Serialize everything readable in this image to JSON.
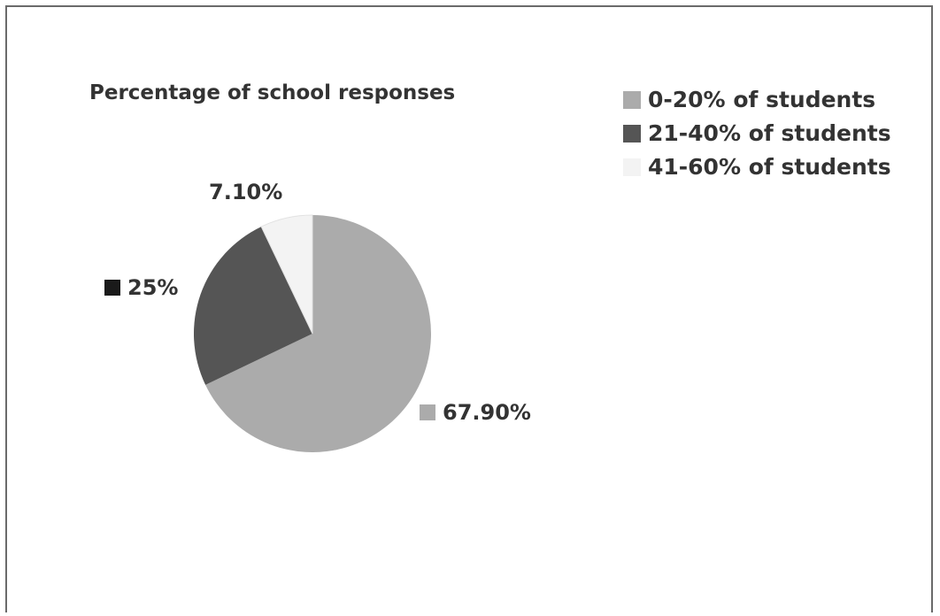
{
  "chart_data": {
    "type": "pie",
    "title": "Percentage of school responses",
    "categories": [
      "0-20% of students",
      "21-40% of students",
      "41-60% of students"
    ],
    "values": [
      67.9,
      25,
      7.1
    ],
    "data_labels": [
      "67.90%",
      "25%",
      "7.10%"
    ],
    "colors": [
      "#ababab",
      "#555555",
      "#f3f3f3"
    ],
    "legend_position": "top-right"
  }
}
